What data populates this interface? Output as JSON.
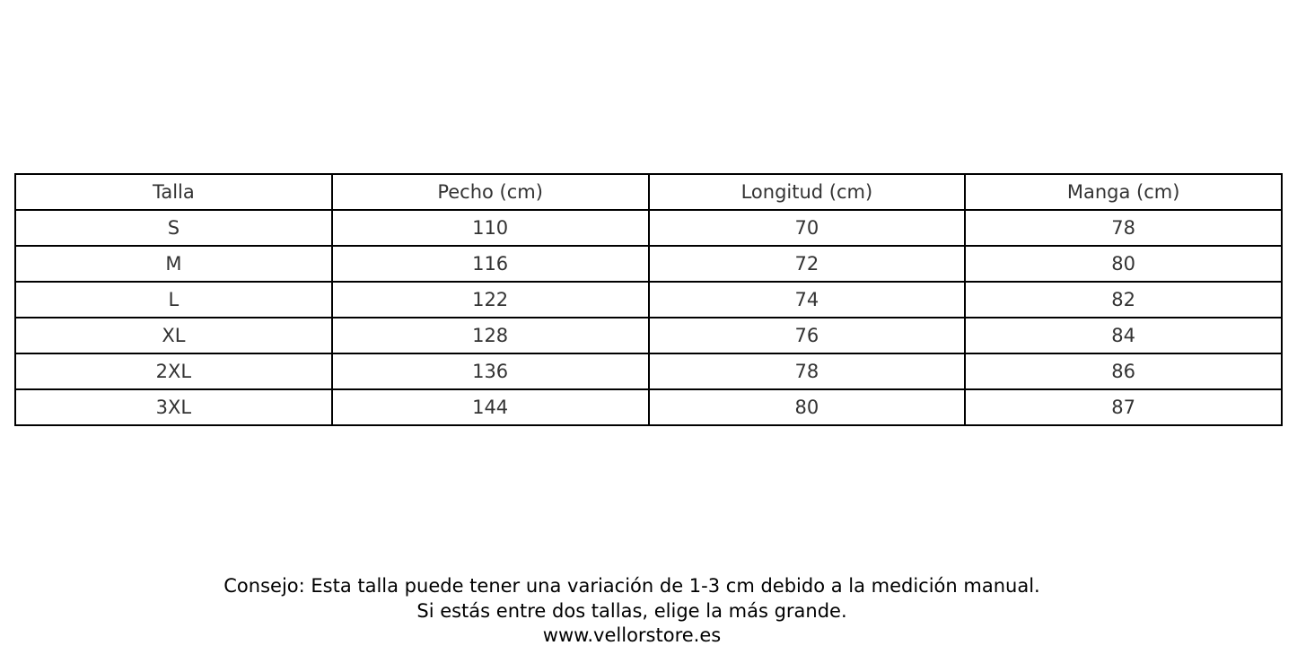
{
  "table": {
    "headers": [
      "Talla",
      "Pecho (cm)",
      "Longitud (cm)",
      "Manga (cm)"
    ],
    "rows": [
      [
        "S",
        "110",
        "70",
        "78"
      ],
      [
        "M",
        "116",
        "72",
        "80"
      ],
      [
        "L",
        "122",
        "74",
        "82"
      ],
      [
        "XL",
        "128",
        "76",
        "84"
      ],
      [
        "2XL",
        "136",
        "78",
        "86"
      ],
      [
        "3XL",
        "144",
        "80",
        "87"
      ]
    ]
  },
  "footer": {
    "tip": "Consejo: Esta talla puede tener una variación de 1-3 cm debido a la medición manual.",
    "advice": "Si estás entre dos tallas, elige la más grande.",
    "website": "www.vellorstore.es"
  }
}
